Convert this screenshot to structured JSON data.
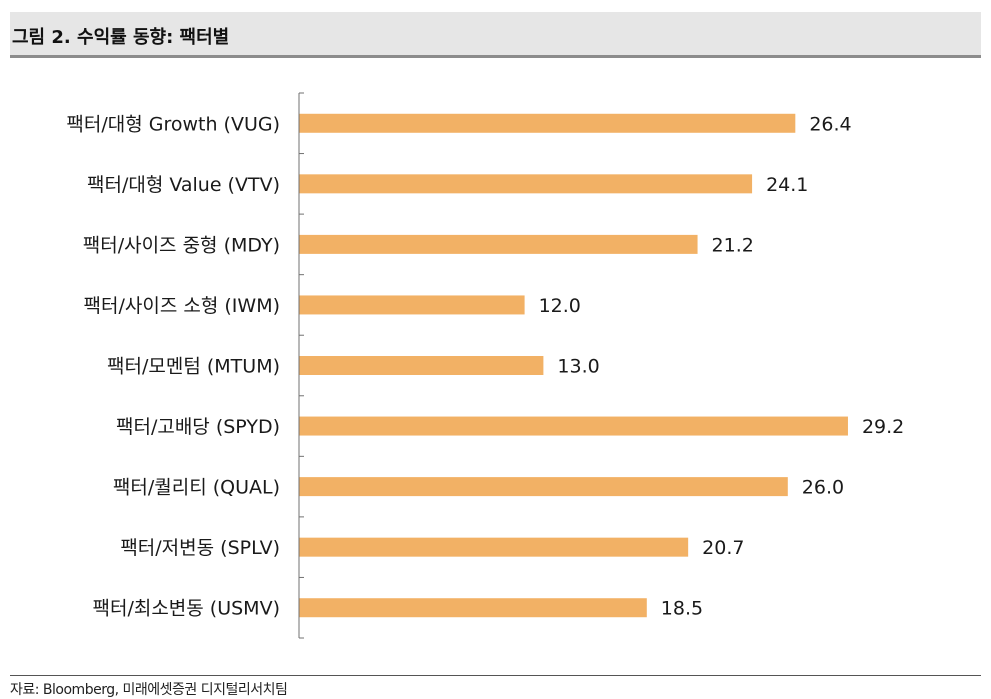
{
  "header": {
    "title": "그림 2. 수익률 동향: 팩터별"
  },
  "colors": {
    "bar": "#f2b165",
    "axis": "#707070",
    "text": "#1a1a1a"
  },
  "chart_data": {
    "type": "bar",
    "orientation": "horizontal",
    "title": "그림 2. 수익률 동향: 팩터별",
    "xlabel": "",
    "ylabel": "",
    "xlim": [
      0,
      32
    ],
    "grid": false,
    "categories": [
      "팩터/대형 Growth (VUG)",
      "팩터/대형 Value (VTV)",
      "팩터/사이즈 중형 (MDY)",
      "팩터/사이즈 소형 (IWM)",
      "팩터/모멘텀 (MTUM)",
      "팩터/고배당 (SPYD)",
      "팩터/퀄리티 (QUAL)",
      "팩터/저변동 (SPLV)",
      "팩터/최소변동 (USMV)"
    ],
    "values": [
      26.4,
      24.1,
      21.2,
      12.0,
      13.0,
      29.2,
      26.0,
      20.7,
      18.5
    ],
    "data_labels": [
      "26.4",
      "24.1",
      "21.2",
      "12.0",
      "13.0",
      "29.2",
      "26.0",
      "20.7",
      "18.5"
    ]
  },
  "footer": {
    "source": "자료: Bloomberg, 미래에셋증권 디지털리서치팀"
  }
}
